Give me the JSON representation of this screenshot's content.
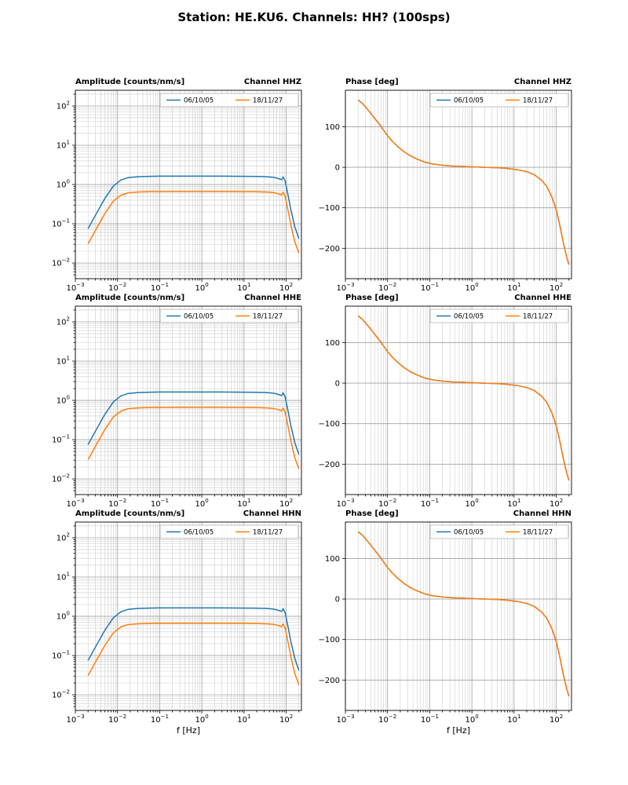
{
  "figure": {
    "title": "Station: HE.KU6. Channels: HH? (100sps)"
  },
  "colors": {
    "series_blue": "#1f77b4",
    "series_orange": "#ff7f0e",
    "grid_major": "#a0a0a0",
    "grid_minor": "#c9c9c9",
    "axes": "#000000"
  },
  "legend_labels": [
    "06/10/05",
    "18/11/27"
  ],
  "chart_data": {
    "type": "line",
    "xscale": "log",
    "xlim": [
      0.001,
      230
    ],
    "xlabel": "f [Hz]",
    "x_major_exponents": [
      -3,
      -2,
      -1,
      0,
      1,
      2
    ],
    "datasets": {
      "amplitude": {
        "title": "Amplitude [counts/nm/s]",
        "yscale": "log",
        "ylim": [
          0.004,
          251
        ],
        "y_major_exponents": [
          -2,
          -1,
          0,
          1,
          2
        ],
        "x": [
          0.002,
          0.003,
          0.005,
          0.008,
          0.012,
          0.018,
          0.03,
          0.06,
          0.1,
          0.3,
          1,
          3,
          10,
          20,
          35,
          50,
          60,
          70,
          78,
          85,
          95,
          110,
          130,
          160,
          200
        ],
        "series": [
          {
            "name": "06/10/05",
            "color": "#1f77b4",
            "y": [
              0.075,
              0.165,
              0.44,
              0.92,
              1.3,
              1.5,
              1.58,
              1.62,
              1.63,
              1.63,
              1.63,
              1.63,
              1.62,
              1.61,
              1.58,
              1.52,
              1.46,
              1.38,
              1.33,
              1.55,
              1.2,
              0.55,
              0.22,
              0.085,
              0.042
            ]
          },
          {
            "name": "18/11/27",
            "color": "#ff7f0e",
            "y": [
              0.031,
              0.068,
              0.18,
              0.38,
              0.535,
              0.615,
              0.645,
              0.658,
              0.66,
              0.662,
              0.662,
              0.662,
              0.66,
              0.655,
              0.643,
              0.62,
              0.595,
              0.563,
              0.542,
              0.632,
              0.49,
              0.225,
              0.09,
              0.035,
              0.018
            ]
          }
        ]
      },
      "phase": {
        "title": "Phase [deg]",
        "yscale": "linear",
        "ylim": [
          -275,
          190
        ],
        "yticks": [
          -200,
          -100,
          0,
          100
        ],
        "x": [
          0.002,
          0.0025,
          0.003,
          0.004,
          0.005,
          0.0065,
          0.008,
          0.01,
          0.013,
          0.018,
          0.025,
          0.035,
          0.05,
          0.08,
          0.12,
          0.2,
          0.35,
          0.6,
          1,
          2,
          4,
          7,
          12,
          20,
          30,
          45,
          60,
          80,
          100,
          120,
          150,
          180,
          200
        ],
        "series": [
          {
            "name": "06/10/05",
            "color": "#1f77b4",
            "y": [
              166,
              158,
              149,
              133,
              120,
              105,
              92,
              78,
              64,
              50,
              38,
              28,
              20,
              12,
              8,
              5,
              3,
              2,
              1,
              0,
              -1,
              -3,
              -6,
              -11,
              -18,
              -32,
              -48,
              -75,
              -105,
              -140,
              -190,
              -225,
              -240
            ]
          },
          {
            "name": "18/11/27",
            "color": "#ff7f0e",
            "y": [
              166,
              158,
              149,
              133,
              120,
              105,
              92,
              78,
              64,
              50,
              38,
              28,
              20,
              12,
              8,
              5,
              3,
              2,
              1,
              0,
              -1,
              -3,
              -6,
              -11,
              -18,
              -32,
              -48,
              -75,
              -105,
              -140,
              -190,
              -225,
              -240
            ]
          }
        ]
      }
    },
    "charts": [
      {
        "row": 0,
        "col": 0,
        "dataset": "amplitude",
        "channel_title": "Channel HHZ",
        "show_xlabel": false
      },
      {
        "row": 0,
        "col": 1,
        "dataset": "phase",
        "channel_title": "Channel HHZ",
        "show_xlabel": false
      },
      {
        "row": 1,
        "col": 0,
        "dataset": "amplitude",
        "channel_title": "Channel HHE",
        "show_xlabel": false
      },
      {
        "row": 1,
        "col": 1,
        "dataset": "phase",
        "channel_title": "Channel HHE",
        "show_xlabel": false
      },
      {
        "row": 2,
        "col": 0,
        "dataset": "amplitude",
        "channel_title": "Channel HHN",
        "show_xlabel": true
      },
      {
        "row": 2,
        "col": 1,
        "dataset": "phase",
        "channel_title": "Channel HHN",
        "show_xlabel": true
      }
    ]
  }
}
